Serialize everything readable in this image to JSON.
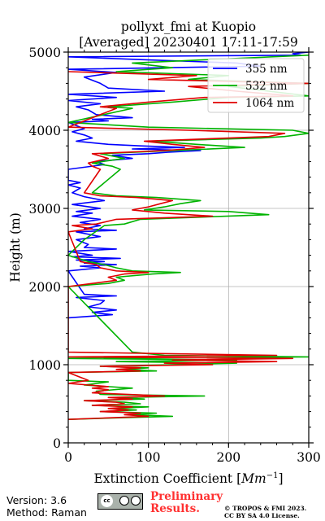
{
  "chart_data": {
    "type": "line",
    "title_line1": "pollyxt_fmi at Kuopio",
    "title_line2": "[Averaged] 20230401 17:11-17:59",
    "xlabel": "Extinction Coefficient [Mm$^{-1}$]",
    "xlabel_main": "Extinction Coefficient [",
    "xlabel_unit": "Mm",
    "xlabel_exp": "−1",
    "xlabel_close": "]",
    "ylabel": "Height (m)",
    "xlim": [
      0,
      300
    ],
    "ylim": [
      0,
      5000
    ],
    "xticks": [
      "0",
      "100",
      "200",
      "300"
    ],
    "yticks": [
      "0",
      "1000",
      "2000",
      "3000",
      "4000",
      "5000"
    ],
    "grid": true,
    "legend_position": "top-right",
    "series": [
      {
        "name": "355 nm",
        "color": "#0000ff",
        "points": [
          [
            0,
            1600
          ],
          [
            55,
            1640
          ],
          [
            30,
            1670
          ],
          [
            60,
            1700
          ],
          [
            25,
            1740
          ],
          [
            40,
            1780
          ],
          [
            45,
            1820
          ],
          [
            10,
            1860
          ],
          [
            60,
            1880
          ],
          [
            20,
            1900
          ],
          [
            0,
            2200
          ],
          [
            40,
            2240
          ],
          [
            15,
            2260
          ],
          [
            60,
            2280
          ],
          [
            20,
            2300
          ],
          [
            45,
            2320
          ],
          [
            10,
            2340
          ],
          [
            65,
            2360
          ],
          [
            5,
            2380
          ],
          [
            30,
            2400
          ],
          [
            0,
            2450
          ],
          [
            60,
            2480
          ],
          [
            20,
            2500
          ],
          [
            25,
            2540
          ],
          [
            10,
            2600
          ],
          [
            40,
            2640
          ],
          [
            10,
            2700
          ],
          [
            60,
            2720
          ],
          [
            20,
            2740
          ],
          [
            40,
            2780
          ],
          [
            15,
            2820
          ],
          [
            40,
            2860
          ],
          [
            5,
            2900
          ],
          [
            30,
            2940
          ],
          [
            10,
            2960
          ],
          [
            40,
            3000
          ],
          [
            5,
            3050
          ],
          [
            45,
            3100
          ],
          [
            20,
            3150
          ],
          [
            5,
            3200
          ],
          [
            15,
            3260
          ],
          [
            0,
            3300
          ],
          [
            15,
            3330
          ],
          [
            0,
            3360
          ],
          [
            0,
            3500
          ],
          [
            45,
            3560
          ],
          [
            35,
            3600
          ],
          [
            80,
            3640
          ],
          [
            55,
            3680
          ],
          [
            100,
            3700
          ],
          [
            125,
            3720
          ],
          [
            165,
            3740
          ],
          [
            80,
            3760
          ],
          [
            145,
            3780
          ],
          [
            90,
            3800
          ],
          [
            50,
            3820
          ],
          [
            10,
            3860
          ],
          [
            30,
            3900
          ],
          [
            20,
            3940
          ],
          [
            5,
            3980
          ],
          [
            20,
            4020
          ],
          [
            0,
            4100
          ],
          [
            50,
            4120
          ],
          [
            30,
            4140
          ],
          [
            80,
            4160
          ],
          [
            35,
            4200
          ],
          [
            25,
            4260
          ],
          [
            10,
            4300
          ],
          [
            40,
            4340
          ],
          [
            0,
            4380
          ],
          [
            60,
            4420
          ],
          [
            0,
            4460
          ],
          [
            120,
            4500
          ],
          [
            50,
            4540
          ],
          [
            40,
            4600
          ],
          [
            20,
            4680
          ],
          [
            60,
            4740
          ],
          [
            0,
            4780
          ],
          [
            240,
            4820
          ],
          [
            210,
            4860
          ],
          [
            100,
            4900
          ],
          [
            0,
            4940
          ],
          [
            290,
            4960
          ],
          [
            280,
            4980
          ],
          [
            300,
            5000
          ]
        ]
      },
      {
        "name": "532 nm",
        "color": "#00b300",
        "points": [
          [
            0,
            300
          ],
          [
            60,
            320
          ],
          [
            130,
            340
          ],
          [
            80,
            360
          ],
          [
            110,
            380
          ],
          [
            40,
            400
          ],
          [
            85,
            420
          ],
          [
            55,
            440
          ],
          [
            100,
            460
          ],
          [
            30,
            480
          ],
          [
            90,
            500
          ],
          [
            70,
            520
          ],
          [
            20,
            540
          ],
          [
            95,
            560
          ],
          [
            60,
            580
          ],
          [
            170,
            600
          ],
          [
            40,
            620
          ],
          [
            35,
            660
          ],
          [
            80,
            700
          ],
          [
            20,
            740
          ],
          [
            50,
            780
          ],
          [
            0,
            800
          ],
          [
            0,
            900
          ],
          [
            110,
            920
          ],
          [
            70,
            940
          ],
          [
            100,
            960
          ],
          [
            40,
            980
          ],
          [
            130,
            1000
          ],
          [
            210,
            1020
          ],
          [
            60,
            1040
          ],
          [
            210,
            1060
          ],
          [
            0,
            1080
          ],
          [
            300,
            1100
          ],
          [
            120,
            1120
          ],
          [
            80,
            1160
          ],
          [
            0,
            2000
          ],
          [
            50,
            2040
          ],
          [
            70,
            2080
          ],
          [
            60,
            2120
          ],
          [
            105,
            2160
          ],
          [
            140,
            2180
          ],
          [
            80,
            2200
          ],
          [
            60,
            2240
          ],
          [
            45,
            2280
          ],
          [
            25,
            2320
          ],
          [
            0,
            2400
          ],
          [
            20,
            2600
          ],
          [
            45,
            2780
          ],
          [
            70,
            2800
          ],
          [
            90,
            2860
          ],
          [
            250,
            2920
          ],
          [
            200,
            2960
          ],
          [
            95,
            2980
          ],
          [
            120,
            3020
          ],
          [
            140,
            3060
          ],
          [
            165,
            3100
          ],
          [
            110,
            3140
          ],
          [
            60,
            3160
          ],
          [
            30,
            3200
          ],
          [
            65,
            3500
          ],
          [
            55,
            3540
          ],
          [
            30,
            3580
          ],
          [
            70,
            3640
          ],
          [
            40,
            3700
          ],
          [
            130,
            3740
          ],
          [
            220,
            3780
          ],
          [
            160,
            3820
          ],
          [
            105,
            3860
          ],
          [
            240,
            3900
          ],
          [
            270,
            3920
          ],
          [
            300,
            3960
          ],
          [
            280,
            4000
          ],
          [
            100,
            4040
          ],
          [
            0,
            4100
          ],
          [
            80,
            4280
          ],
          [
            50,
            4300
          ],
          [
            130,
            4360
          ],
          [
            200,
            4420
          ],
          [
            300,
            4440
          ],
          [
            250,
            4500
          ],
          [
            200,
            4560
          ],
          [
            300,
            4600
          ],
          [
            150,
            4650
          ],
          [
            200,
            4700
          ],
          [
            60,
            4750
          ],
          [
            130,
            4800
          ],
          [
            80,
            4860
          ],
          [
            300,
            4960
          ]
        ]
      },
      {
        "name": "1064 nm",
        "color": "#e00000",
        "points": [
          [
            0,
            300
          ],
          [
            50,
            320
          ],
          [
            100,
            340
          ],
          [
            70,
            360
          ],
          [
            90,
            380
          ],
          [
            40,
            400
          ],
          [
            75,
            420
          ],
          [
            50,
            440
          ],
          [
            80,
            460
          ],
          [
            30,
            480
          ],
          [
            70,
            500
          ],
          [
            60,
            520
          ],
          [
            20,
            540
          ],
          [
            80,
            560
          ],
          [
            50,
            580
          ],
          [
            120,
            600
          ],
          [
            30,
            640
          ],
          [
            50,
            680
          ],
          [
            30,
            700
          ],
          [
            50,
            720
          ],
          [
            0,
            760
          ],
          [
            25,
            800
          ],
          [
            0,
            900
          ],
          [
            90,
            920
          ],
          [
            60,
            940
          ],
          [
            90,
            960
          ],
          [
            40,
            980
          ],
          [
            180,
            1000
          ],
          [
            120,
            1020
          ],
          [
            260,
            1040
          ],
          [
            130,
            1060
          ],
          [
            280,
            1080
          ],
          [
            0,
            1100
          ],
          [
            260,
            1120
          ],
          [
            0,
            1160
          ],
          [
            0,
            2000
          ],
          [
            30,
            2040
          ],
          [
            60,
            2080
          ],
          [
            50,
            2120
          ],
          [
            70,
            2160
          ],
          [
            100,
            2180
          ],
          [
            60,
            2200
          ],
          [
            40,
            2240
          ],
          [
            35,
            2280
          ],
          [
            15,
            2320
          ],
          [
            0,
            2700
          ],
          [
            30,
            2740
          ],
          [
            5,
            2780
          ],
          [
            35,
            2800
          ],
          [
            60,
            2860
          ],
          [
            180,
            2900
          ],
          [
            120,
            2940
          ],
          [
            80,
            2980
          ],
          [
            100,
            3020
          ],
          [
            115,
            3060
          ],
          [
            130,
            3100
          ],
          [
            85,
            3140
          ],
          [
            40,
            3160
          ],
          [
            20,
            3200
          ],
          [
            40,
            3500
          ],
          [
            30,
            3540
          ],
          [
            25,
            3580
          ],
          [
            50,
            3640
          ],
          [
            30,
            3700
          ],
          [
            120,
            3740
          ],
          [
            170,
            3780
          ],
          [
            130,
            3820
          ],
          [
            95,
            3860
          ],
          [
            200,
            3900
          ],
          [
            250,
            3920
          ],
          [
            270,
            3960
          ],
          [
            150,
            4000
          ],
          [
            0,
            4040
          ],
          [
            60,
            4280
          ],
          [
            40,
            4300
          ],
          [
            100,
            4360
          ],
          [
            170,
            4420
          ],
          [
            280,
            4440
          ],
          [
            210,
            4500
          ],
          [
            150,
            4560
          ],
          [
            300,
            4600
          ],
          [
            100,
            4650
          ],
          [
            160,
            4700
          ],
          [
            0,
            4750
          ]
        ]
      }
    ]
  },
  "footer": {
    "version": "Version: 3.6",
    "method": "Method: Raman",
    "preliminary_line1": "Preliminary",
    "preliminary_line2": "Results.",
    "copyright_line1": "© TROPOS & FMI 2023.",
    "copyright_line2": "CC BY SA 4.0 License.",
    "license_badge_text": "cc"
  }
}
